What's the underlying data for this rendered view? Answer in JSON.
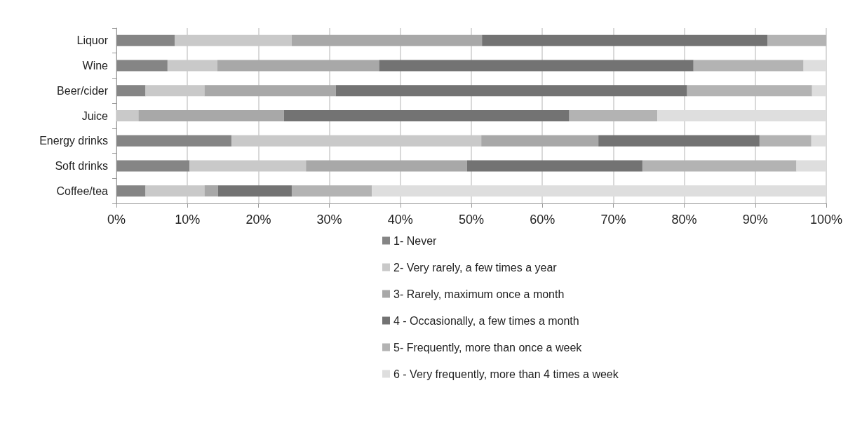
{
  "chart_data": {
    "type": "bar",
    "orientation": "horizontal",
    "stacked": true,
    "grid": "x",
    "legend": "bottom",
    "categories": [
      "Liquor",
      "Wine",
      "Beer/cider",
      "Juice",
      "Energy drinks",
      "Soft drinks",
      "Coffee/tea"
    ],
    "xlim": [
      0,
      100
    ],
    "xticks": [
      {
        "value": 0,
        "label": "0%"
      },
      {
        "value": 10,
        "label": "10%"
      },
      {
        "value": 20,
        "label": "20%"
      },
      {
        "value": 30,
        "label": "30%"
      },
      {
        "value": 40,
        "label": "40%"
      },
      {
        "value": 50,
        "label": "50%"
      },
      {
        "value": 60,
        "label": "60%"
      },
      {
        "value": 70,
        "label": "70%"
      },
      {
        "value": 80,
        "label": "80%"
      },
      {
        "value": 90,
        "label": "90%"
      },
      {
        "value": 100,
        "label": "100%"
      }
    ],
    "series": [
      {
        "name": "1- Never",
        "color": "#858585",
        "values": [
          8.2,
          7.2,
          4.1,
          0,
          16.2,
          10.3,
          4.1
        ]
      },
      {
        "name": "2- Very rarely, a few times a year",
        "color": "#c9c9c9",
        "values": [
          16.5,
          7.0,
          8.3,
          3.1,
          35.2,
          16.4,
          8.3
        ]
      },
      {
        "name": "3- Rarely, maximum once a month",
        "color": "#a8a8a8",
        "values": [
          26.8,
          22.8,
          18.5,
          20.5,
          16.5,
          22.7,
          1.9
        ]
      },
      {
        "name": "4 - Occasionally, a few times a month",
        "color": "#737373",
        "values": [
          40.2,
          44.3,
          49.5,
          40.2,
          22.7,
          24.7,
          10.4
        ]
      },
      {
        "name": "5- Frequently, more than once a week",
        "color": "#b3b3b3",
        "values": [
          8.3,
          15.5,
          17.6,
          12.4,
          7.3,
          21.7,
          11.3
        ]
      },
      {
        "name": "6 - Very frequently, more than 4 times a week",
        "color": "#dedede",
        "values": [
          0,
          3.2,
          2.0,
          23.8,
          2.1,
          4.2,
          64.0
        ]
      }
    ]
  }
}
